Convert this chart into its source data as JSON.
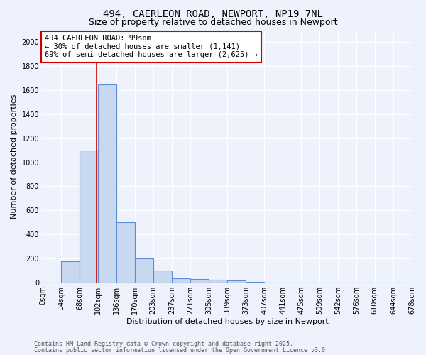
{
  "title_line1": "494, CAERLEON ROAD, NEWPORT, NP19 7NL",
  "title_line2": "Size of property relative to detached houses in Newport",
  "xlabel": "Distribution of detached houses by size in Newport",
  "ylabel": "Number of detached properties",
  "footnote1": "Contains HM Land Registry data © Crown copyright and database right 2025.",
  "footnote2": "Contains public sector information licensed under the Open Government Licence v3.0.",
  "bin_edges": [
    0,
    34,
    68,
    102,
    136,
    170,
    203,
    237,
    271,
    305,
    339,
    373,
    407,
    441,
    475,
    509,
    542,
    576,
    610,
    644,
    678
  ],
  "bin_labels": [
    "0sqm",
    "34sqm",
    "68sqm",
    "102sqm",
    "136sqm",
    "170sqm",
    "203sqm",
    "237sqm",
    "271sqm",
    "305sqm",
    "339sqm",
    "373sqm",
    "407sqm",
    "441sqm",
    "475sqm",
    "509sqm",
    "542sqm",
    "576sqm",
    "610sqm",
    "644sqm",
    "678sqm"
  ],
  "counts": [
    0,
    175,
    1100,
    1650,
    500,
    200,
    100,
    35,
    25,
    20,
    15,
    5,
    0,
    0,
    0,
    0,
    0,
    0,
    0,
    0
  ],
  "property_size": 99,
  "bar_color": "#c8d8f0",
  "bar_edge_color": "#5b8dd9",
  "red_line_color": "#cc0000",
  "annotation_text": "494 CAERLEON ROAD: 99sqm\n← 30% of detached houses are smaller (1,141)\n69% of semi-detached houses are larger (2,625) →",
  "annotation_box_color": "#ffffff",
  "annotation_box_edge": "#cc0000",
  "ylim": [
    0,
    2100
  ],
  "yticks": [
    0,
    200,
    400,
    600,
    800,
    1000,
    1200,
    1400,
    1600,
    1800,
    2000
  ],
  "bg_color": "#eef2fc",
  "grid_color": "#ffffff",
  "title_fontsize": 10,
  "subtitle_fontsize": 9,
  "axis_label_fontsize": 8,
  "tick_fontsize": 7,
  "annotation_fontsize": 7.5
}
